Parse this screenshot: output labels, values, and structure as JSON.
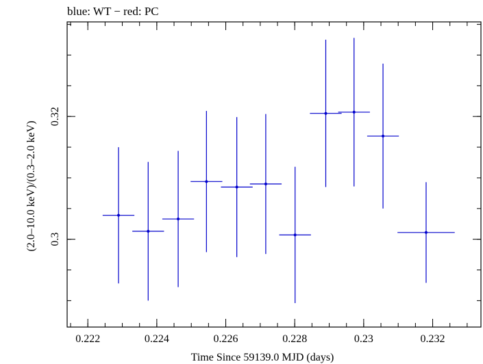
{
  "chart_data": {
    "type": "scatter",
    "title": "blue: WT − red: PC",
    "xlabel": "Time Since 59139.0 MJD (days)",
    "ylabel": "(2.0–10.0 keV)/(0.3–2.0 keV)",
    "xlim": [
      0.2214,
      0.2334
    ],
    "ylim": [
      0.2857,
      0.3354
    ],
    "x_ticks": [
      {
        "value": 0.222,
        "label": "0.222"
      },
      {
        "value": 0.224,
        "label": "0.224"
      },
      {
        "value": 0.226,
        "label": "0.226"
      },
      {
        "value": 0.228,
        "label": "0.228"
      },
      {
        "value": 0.23,
        "label": "0.23"
      },
      {
        "value": 0.232,
        "label": "0.232"
      }
    ],
    "y_ticks": [
      {
        "value": 0.3,
        "label": "0.3"
      },
      {
        "value": 0.32,
        "label": "0.32"
      }
    ],
    "x_minor_step": 0.0005,
    "y_minor_step": 0.005,
    "grid": false,
    "series": [
      {
        "color": "#0000cc",
        "points": [
          {
            "x": 0.22289,
            "xerr": 0.00046,
            "y": 0.3039,
            "yerr": 0.0111
          },
          {
            "x": 0.22375,
            "xerr": 0.00046,
            "y": 0.3013,
            "yerr": 0.0113
          },
          {
            "x": 0.22462,
            "xerr": 0.00046,
            "y": 0.3033,
            "yerr": 0.0111
          },
          {
            "x": 0.22544,
            "xerr": 0.00046,
            "y": 0.3094,
            "yerr": 0.0115
          },
          {
            "x": 0.22632,
            "xerr": 0.00046,
            "y": 0.3085,
            "yerr": 0.0114
          },
          {
            "x": 0.22716,
            "xerr": 0.00046,
            "y": 0.309,
            "yerr": 0.0114
          },
          {
            "x": 0.22801,
            "xerr": 0.00046,
            "y": 0.3007,
            "yerr": 0.0111
          },
          {
            "x": 0.2289,
            "xerr": 0.00046,
            "y": 0.3205,
            "yerr": 0.012
          },
          {
            "x": 0.22972,
            "xerr": 0.00046,
            "y": 0.3207,
            "yerr": 0.0121
          },
          {
            "x": 0.23056,
            "xerr": 0.00046,
            "y": 0.3168,
            "yerr": 0.0118
          },
          {
            "x": 0.23181,
            "xerr": 0.00083,
            "y": 0.3011,
            "yerr": 0.0082
          }
        ]
      }
    ]
  }
}
